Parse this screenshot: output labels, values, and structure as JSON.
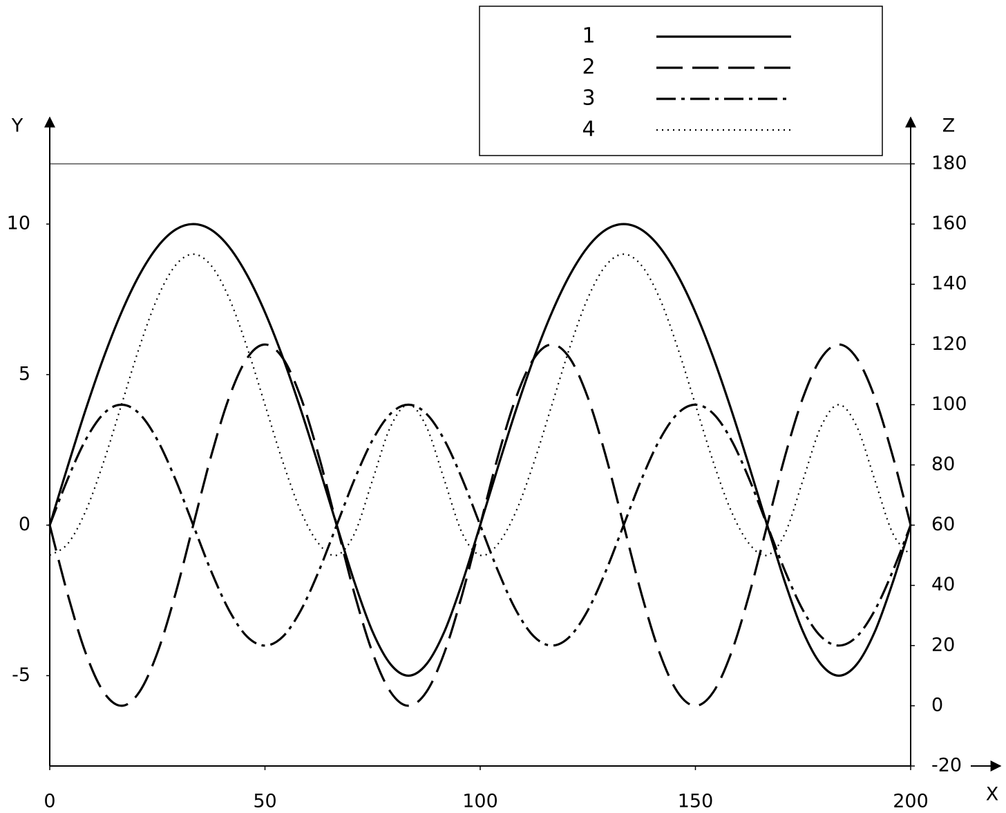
{
  "chart_data": {
    "type": "line",
    "x_label": "X",
    "y_label": "Y",
    "y2_label": "Z",
    "x": [
      0,
      4.17,
      8.33,
      12.5,
      16.67,
      20.83,
      25,
      29.17,
      33.33,
      37.5,
      41.67,
      45.83,
      50,
      54.17,
      58.33,
      62.5,
      66.67,
      70.83,
      75,
      79.17,
      83.33,
      87.5,
      91.67,
      95.83,
      100,
      104.17,
      108.33,
      112.5,
      116.67,
      120.83,
      125,
      129.17,
      133.33,
      137.5,
      141.67,
      145.83,
      150,
      154.17,
      158.33,
      162.5,
      166.67,
      170.83,
      175,
      179.17,
      183.33,
      187.5,
      191.67,
      195.83,
      200
    ],
    "series": [
      {
        "name": "1",
        "color": "#000000",
        "style": "solid",
        "values": [
          0,
          1.95,
          3.83,
          5.56,
          7.07,
          8.31,
          9.24,
          9.81,
          10,
          9.81,
          9.24,
          8.31,
          7.07,
          5.56,
          3.83,
          1.95,
          0,
          -1.91,
          -3.54,
          -4.62,
          -5,
          -4.62,
          -3.54,
          -1.91,
          0,
          1.95,
          3.83,
          5.56,
          7.07,
          8.31,
          9.24,
          9.81,
          10,
          9.81,
          9.24,
          8.31,
          7.07,
          5.56,
          3.83,
          1.95,
          0,
          -1.91,
          -3.54,
          -4.62,
          -5,
          -4.62,
          -3.54,
          -1.91,
          0
        ]
      },
      {
        "name": "2",
        "color": "#000000",
        "style": "dash",
        "values": [
          0,
          -2.3,
          -4.24,
          -5.54,
          -6,
          -5.54,
          -4.24,
          -2.3,
          0,
          2.3,
          4.24,
          5.54,
          6,
          5.54,
          4.24,
          2.3,
          0,
          -2.3,
          -4.24,
          -5.54,
          -6,
          -5.54,
          -4.24,
          -2.3,
          0,
          2.3,
          4.24,
          5.54,
          6,
          5.54,
          4.24,
          2.3,
          0,
          -2.3,
          -4.24,
          -5.54,
          -6,
          -5.54,
          -4.24,
          -2.3,
          0,
          2.3,
          4.24,
          5.54,
          6,
          5.54,
          4.24,
          2.3,
          0
        ]
      },
      {
        "name": "3",
        "color": "#000000",
        "style": "dashdot",
        "values": [
          0,
          1.53,
          2.83,
          3.7,
          4,
          3.7,
          2.83,
          1.53,
          0,
          -1.53,
          -2.83,
          -3.7,
          -4,
          -3.7,
          -2.83,
          -1.53,
          0,
          1.53,
          2.83,
          3.7,
          4,
          3.7,
          2.83,
          1.53,
          0,
          -1.53,
          -2.83,
          -3.7,
          -4,
          -3.7,
          -2.83,
          -1.53,
          0,
          1.53,
          2.83,
          3.7,
          4,
          3.7,
          2.83,
          1.53,
          0,
          -1.53,
          -2.83,
          -3.7,
          -4,
          -3.7,
          -2.83,
          -1.53,
          0
        ]
      },
      {
        "name": "4",
        "color": "#000000",
        "style": "dot",
        "values": [
          -1,
          -0.62,
          0.46,
          2.09,
          4,
          5.91,
          7.54,
          8.62,
          9,
          8.62,
          7.54,
          5.91,
          4,
          2.09,
          0.46,
          -0.62,
          -1,
          -0.27,
          1.5,
          3.27,
          4,
          3.27,
          1.5,
          -0.27,
          -1,
          -0.62,
          0.46,
          2.09,
          4,
          5.91,
          7.54,
          8.62,
          9,
          8.62,
          7.54,
          5.91,
          4,
          2.09,
          0.46,
          -0.62,
          -1,
          -0.27,
          1.5,
          3.27,
          4,
          3.27,
          1.5,
          -0.27,
          -1
        ]
      }
    ],
    "xlim": [
      0,
      200
    ],
    "xticks": [
      0,
      50,
      100,
      150,
      200
    ],
    "ylim": [
      -8,
      12
    ],
    "yticks": [
      -5,
      0,
      5,
      10
    ],
    "y2lim": [
      -20,
      180
    ],
    "y2ticks": [
      -20,
      0,
      20,
      40,
      60,
      80,
      100,
      120,
      140,
      160,
      180
    ],
    "grid": false,
    "legend": "top-right"
  }
}
